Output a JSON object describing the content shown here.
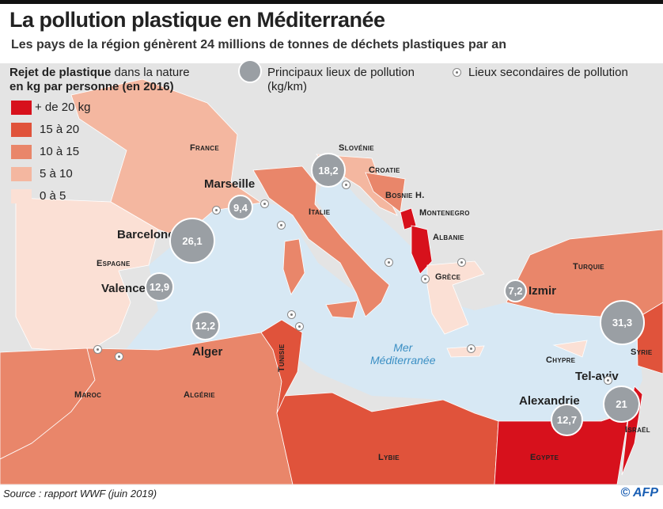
{
  "header": {
    "title": "La pollution plastique en Méditerranée",
    "subtitle": "Les pays de la région génèrent 24 millions de tonnes de déchets plastiques par an"
  },
  "legend": {
    "title_bold": "Rejet de plastique",
    "title_rest": " dans la nature",
    "title_line2": "en kg par personne (en 2016)",
    "classes": [
      {
        "label": "+ de 20 kg",
        "color": "#d7111c"
      },
      {
        "label": "15 à 20",
        "color": "#e0533b"
      },
      {
        "label": "10 à 15",
        "color": "#e9866a"
      },
      {
        "label": "5 à 10",
        "color": "#f4b7a0"
      },
      {
        "label": "0 à 5",
        "color": "#fbe0d5"
      }
    ],
    "main_sites": "Principaux lieux de pollution",
    "main_sites_unit": "(kg/km)",
    "secondary_sites": "Lieux secondaires de pollution"
  },
  "countries": {
    "france": "France",
    "espagne": "Espagne",
    "italie": "Italie",
    "slovenie": "Slovénie",
    "croatie": "Croatie",
    "bosnie": "Bosnie H.",
    "montenegro": "Montenegro",
    "albanie": "Albanie",
    "grece": "Grèce",
    "turquie": "Turquie",
    "chypre": "Chypre",
    "syrie": "Syrie",
    "israel": "Israël",
    "egypte": "Egypte",
    "lybie": "Lybie",
    "tunisie": "Tunisie",
    "algerie": "Algérie",
    "maroc": "Maroc"
  },
  "cities": {
    "marseille": "Marseille",
    "barcelone": "Barcelone",
    "valence": "Valence",
    "alger": "Alger",
    "izmir": "Izmir",
    "telaviv": "Tel-aviv",
    "alexandrie": "Alexandrie"
  },
  "hotspots": {
    "barcelone": "26,1",
    "marseille": "9,4",
    "venise": "18,2",
    "valence": "12,9",
    "alger": "12,2",
    "izmir": "7,2",
    "syrie": "31,3",
    "telaviv": "21",
    "alexandrie": "12,7"
  },
  "sea": {
    "line1": "Mer",
    "line2": "Méditerranée"
  },
  "footer": {
    "source": "Source : rapport WWF (juin 2019)",
    "credit": "© AFP"
  }
}
